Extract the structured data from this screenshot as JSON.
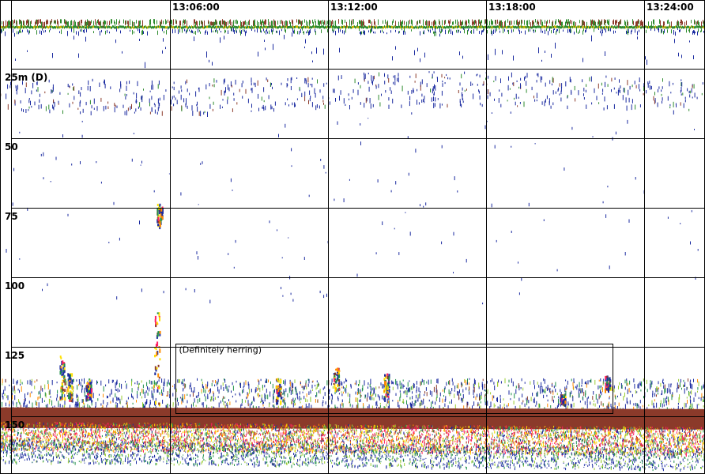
{
  "chart_data": {
    "type": "echogram",
    "time_ticks": [
      "13:06:00",
      "13:12:00",
      "13:18:00",
      "13:24:00"
    ],
    "depth_ticks": [
      {
        "value": 25,
        "label": "25m (D)"
      },
      {
        "value": 50,
        "label": "50"
      },
      {
        "value": 75,
        "label": "75"
      },
      {
        "value": 100,
        "label": "100"
      },
      {
        "value": 125,
        "label": "125"
      },
      {
        "value": 150,
        "label": "150"
      }
    ],
    "depth_range": [
      0,
      170
    ],
    "time_range_minutes": [
      0,
      26.8
    ],
    "grid": true,
    "annotation": {
      "text": "(Definitely herring)",
      "time_start_min": 6.2,
      "time_end_min": 22.8,
      "depth_top": 123.5,
      "depth_bottom": 148.5
    },
    "seabed": {
      "description": "strong bottom echo",
      "depth_start": 147,
      "depth_end": 151
    },
    "colors": {
      "grid": "#000000",
      "background": "#ffffff",
      "bottom_core": "#8b3a2a",
      "scale": [
        "#1a2aa0",
        "#1f8f4a",
        "#9acd32",
        "#ffe000",
        "#ff8c00",
        "#ff2060",
        "#c0303a",
        "#8b3a2a"
      ]
    }
  }
}
